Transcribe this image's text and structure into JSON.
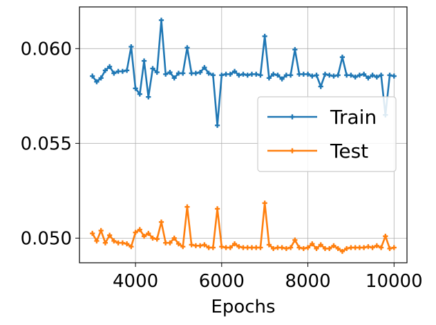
{
  "chart_data": {
    "type": "line",
    "title": "",
    "xlabel": "Epochs",
    "ylabel": "",
    "xlim": [
      2700,
      10300
    ],
    "ylim": [
      0.0487,
      0.0622
    ],
    "xticks": [
      4000,
      6000,
      8000,
      10000
    ],
    "xtick_labels": [
      "4000",
      "6000",
      "8000",
      "10000"
    ],
    "yticks": [
      0.05,
      0.055,
      0.06
    ],
    "ytick_labels": [
      "0.050",
      "0.055",
      "0.060"
    ],
    "grid": true,
    "legend_position": "center-right",
    "x": [
      3000,
      3100,
      3200,
      3300,
      3400,
      3500,
      3600,
      3700,
      3800,
      3900,
      4000,
      4100,
      4200,
      4300,
      4400,
      4500,
      4600,
      4700,
      4800,
      4900,
      5000,
      5100,
      5200,
      5300,
      5400,
      5500,
      5600,
      5700,
      5800,
      5900,
      6000,
      6100,
      6200,
      6300,
      6400,
      6500,
      6600,
      6700,
      6800,
      6900,
      7000,
      7100,
      7200,
      7300,
      7400,
      7500,
      7600,
      7700,
      7800,
      7900,
      8000,
      8100,
      8200,
      8300,
      8400,
      8500,
      8600,
      8700,
      8800,
      8900,
      9000,
      9100,
      9200,
      9300,
      9400,
      9500,
      9600,
      9700,
      9800,
      9900,
      10000
    ],
    "series": [
      {
        "name": "Train",
        "color": "#1f77b4",
        "values": [
          0.05855,
          0.05825,
          0.05845,
          0.05885,
          0.05905,
          0.0587,
          0.0588,
          0.0588,
          0.05885,
          0.0601,
          0.0579,
          0.0576,
          0.05935,
          0.05745,
          0.05895,
          0.05875,
          0.0615,
          0.05865,
          0.05875,
          0.05845,
          0.0587,
          0.0587,
          0.06005,
          0.0587,
          0.0587,
          0.05875,
          0.059,
          0.0587,
          0.0586,
          0.05595,
          0.0586,
          0.05865,
          0.05865,
          0.0588,
          0.0586,
          0.05865,
          0.0586,
          0.05865,
          0.05865,
          0.0586,
          0.06065,
          0.05845,
          0.05865,
          0.0586,
          0.0584,
          0.0586,
          0.0586,
          0.05995,
          0.05865,
          0.05865,
          0.05865,
          0.05855,
          0.0586,
          0.058,
          0.05865,
          0.0586,
          0.05855,
          0.0586,
          0.05955,
          0.0586,
          0.0586,
          0.0585,
          0.0586,
          0.05865,
          0.05845,
          0.0586,
          0.0585,
          0.0586,
          0.0565,
          0.0586,
          0.05855
        ]
      },
      {
        "name": "Test",
        "color": "#ff7f0e",
        "values": [
          0.05025,
          0.04985,
          0.0504,
          0.04975,
          0.05015,
          0.04985,
          0.04975,
          0.04975,
          0.0497,
          0.04955,
          0.0503,
          0.05045,
          0.0501,
          0.05025,
          0.05,
          0.04995,
          0.05085,
          0.04975,
          0.04975,
          0.05,
          0.0497,
          0.04955,
          0.05165,
          0.04965,
          0.0496,
          0.0496,
          0.04965,
          0.0495,
          0.0495,
          0.05155,
          0.04955,
          0.0495,
          0.0495,
          0.0497,
          0.04955,
          0.0495,
          0.0495,
          0.0495,
          0.0495,
          0.0495,
          0.05185,
          0.04965,
          0.04945,
          0.0495,
          0.0495,
          0.04945,
          0.0495,
          0.0499,
          0.0495,
          0.04945,
          0.0495,
          0.0497,
          0.04945,
          0.04965,
          0.04945,
          0.04945,
          0.0496,
          0.04945,
          0.0493,
          0.04945,
          0.0495,
          0.0495,
          0.0495,
          0.0495,
          0.04955,
          0.0495,
          0.0496,
          0.0495,
          0.0501,
          0.04945,
          0.0495
        ]
      }
    ]
  }
}
